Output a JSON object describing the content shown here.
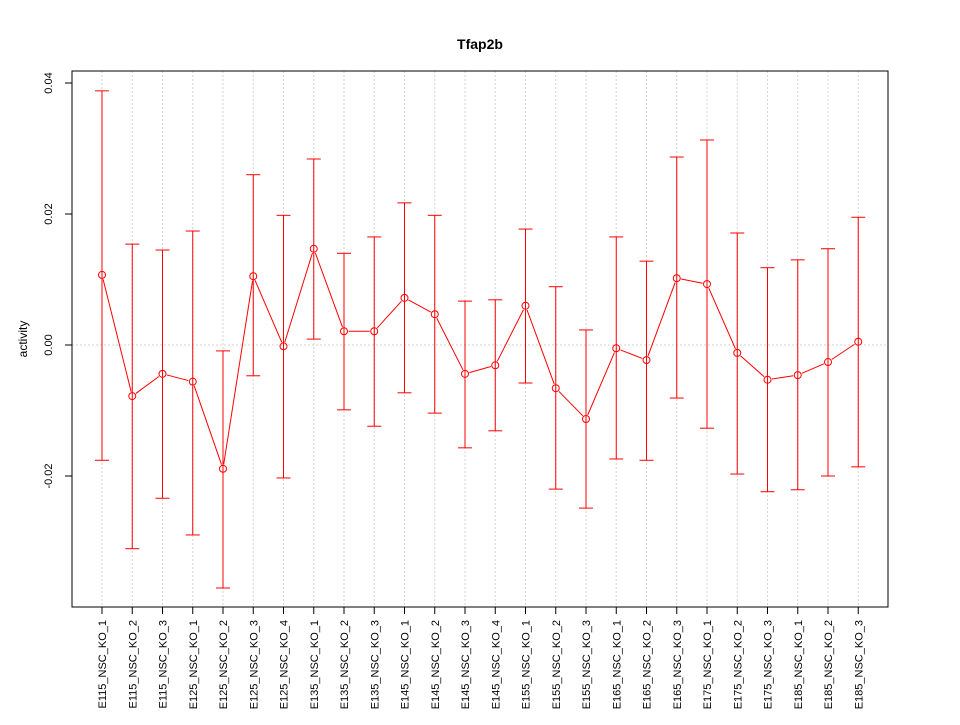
{
  "chart_data": {
    "type": "line",
    "title": "Tfap2b",
    "xlabel": "",
    "ylabel": "activity",
    "ylim": [
      -0.04,
      0.04
    ],
    "yticks": [
      0.04,
      0.02,
      0.0,
      -0.02
    ],
    "ytick_labels": [
      "0.04",
      "0.02",
      "0.00",
      "-0.02"
    ],
    "grid": true,
    "color": "#ff0000",
    "categories": [
      "E115_NSC_KO_1",
      "E115_NSC_KO_2",
      "E115_NSC_KO_3",
      "E125_NSC_KO_1",
      "E125_NSC_KO_2",
      "E125_NSC_KO_3",
      "E125_NSC_KO_4",
      "E135_NSC_KO_1",
      "E135_NSC_KO_2",
      "E135_NSC_KO_3",
      "E145_NSC_KO_1",
      "E145_NSC_KO_2",
      "E145_NSC_KO_3",
      "E145_NSC_KO_4",
      "E155_NSC_KO_1",
      "E155_NSC_KO_2",
      "E155_NSC_KO_3",
      "E165_NSC_KO_1",
      "E165_NSC_KO_2",
      "E165_NSC_KO_3",
      "E175_NSC_KO_1",
      "E175_NSC_KO_2",
      "E175_NSC_KO_3",
      "E185_NSC_KO_1",
      "E185_NSC_KO_2",
      "E185_NSC_KO_3"
    ],
    "values": [
      0.0107,
      -0.0078,
      -0.0044,
      -0.0056,
      -0.0189,
      0.0105,
      -0.0002,
      0.0147,
      0.0021,
      0.0021,
      0.0072,
      0.0047,
      -0.0044,
      -0.0031,
      0.006,
      -0.0066,
      -0.0113,
      -0.0005,
      -0.0023,
      0.0102,
      0.0093,
      -0.0012,
      -0.0053,
      -0.0046,
      -0.0026,
      0.0005
    ],
    "upper": [
      0.0388,
      0.0154,
      0.0145,
      0.0174,
      -0.0009,
      0.026,
      0.0198,
      0.0284,
      0.014,
      0.0165,
      0.0217,
      0.0198,
      0.0067,
      0.0069,
      0.0177,
      0.0089,
      0.0023,
      0.0165,
      0.0128,
      0.0287,
      0.0313,
      0.0171,
      0.0118,
      0.013,
      0.0147,
      0.0195
    ],
    "lower": [
      -0.0176,
      -0.0311,
      -0.0234,
      -0.029,
      -0.0371,
      -0.0047,
      -0.0203,
      0.0009,
      -0.0099,
      -0.0124,
      -0.0073,
      -0.0104,
      -0.0157,
      -0.0131,
      -0.0058,
      -0.022,
      -0.0249,
      -0.0174,
      -0.0176,
      -0.0081,
      -0.0127,
      -0.0197,
      -0.0224,
      -0.0221,
      -0.02,
      -0.0186
    ]
  }
}
